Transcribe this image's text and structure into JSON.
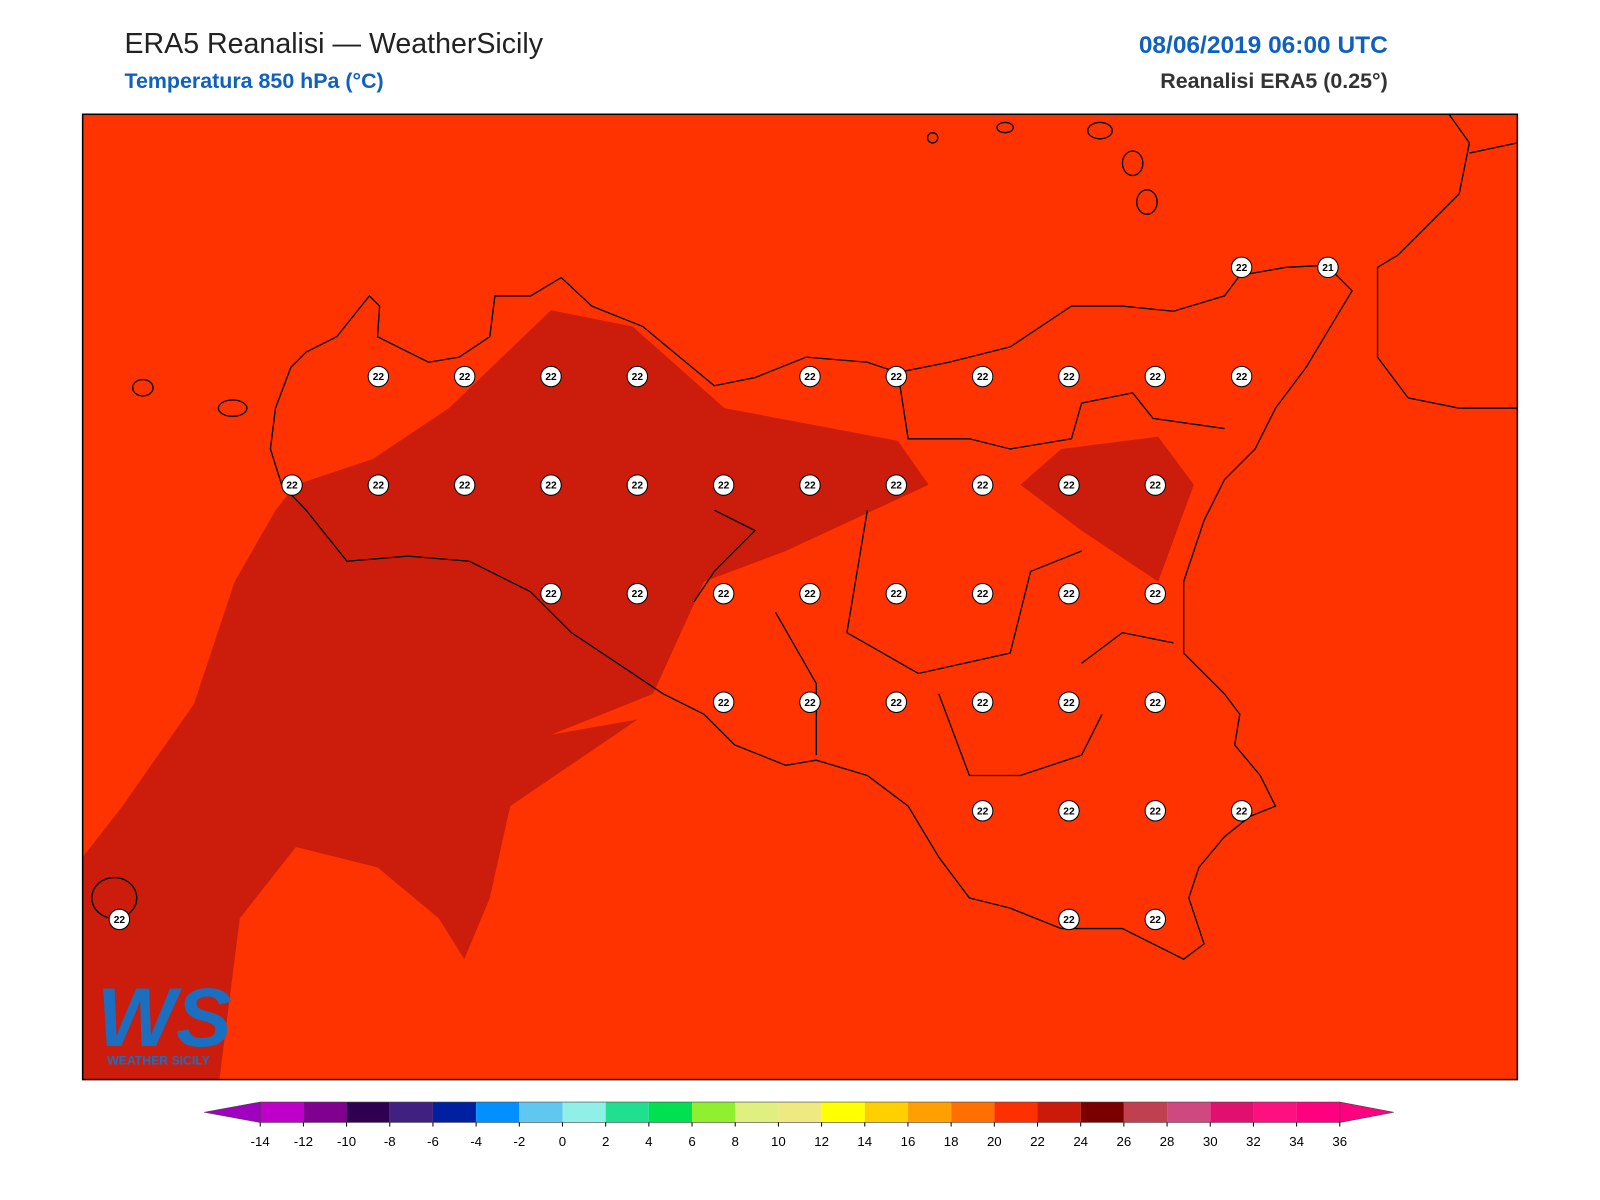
{
  "header": {
    "title": "ERA5 Reanalisi — WeatherSicily",
    "subtitle": "Temperatura 850 hPa (°C)",
    "date": "08/06/2019 06:00 UTC",
    "source": "Reanalisi ERA5 (0.25°)",
    "logo_text": "WS",
    "logo_caption": "WEATHER SICILY"
  },
  "map": {
    "background_color": "#ff3300",
    "region_color": "#cc1c0c",
    "values": [
      [
        null,
        null,
        null,
        null,
        null,
        null,
        null,
        null,
        null,
        null,
        null,
        null,
        null,
        22,
        21
      ],
      [
        null,
        null,
        null,
        22,
        22,
        22,
        22,
        null,
        22,
        22,
        22,
        22,
        22,
        22,
        null
      ],
      [
        null,
        null,
        22,
        22,
        22,
        22,
        22,
        22,
        22,
        22,
        22,
        22,
        22,
        null,
        null
      ],
      [
        null,
        null,
        null,
        null,
        null,
        22,
        22,
        22,
        22,
        22,
        22,
        22,
        22,
        null,
        null
      ],
      [
        null,
        null,
        null,
        null,
        null,
        null,
        null,
        22,
        22,
        22,
        22,
        22,
        22,
        null,
        null
      ],
      [
        null,
        null,
        null,
        null,
        null,
        null,
        null,
        null,
        null,
        null,
        22,
        22,
        22,
        22,
        null
      ],
      [
        22,
        null,
        null,
        null,
        null,
        null,
        null,
        null,
        null,
        null,
        null,
        22,
        22,
        null,
        null
      ]
    ]
  },
  "colorbar": {
    "ticks": [
      -14,
      -12,
      -10,
      -8,
      -6,
      -4,
      -2,
      0,
      2,
      4,
      6,
      8,
      10,
      12,
      14,
      16,
      18,
      20,
      22,
      24,
      26,
      28,
      30,
      32,
      34,
      36
    ],
    "colors": [
      "#bf00c8",
      "#800090",
      "#300050",
      "#402080",
      "#0020a0",
      "#0090ff",
      "#60c8f0",
      "#90f0e8",
      "#20e090",
      "#00e050",
      "#90f030",
      "#e0f080",
      "#f0e880",
      "#ffff00",
      "#ffd000",
      "#ffa000",
      "#ff7000",
      "#ff3000",
      "#cc1a0a",
      "#7a0000",
      "#c04050",
      "#d04880",
      "#e01070",
      "#ff1080",
      "#ff0080"
    ],
    "under_color": "#a000c0",
    "over_color": "#ff0080"
  }
}
